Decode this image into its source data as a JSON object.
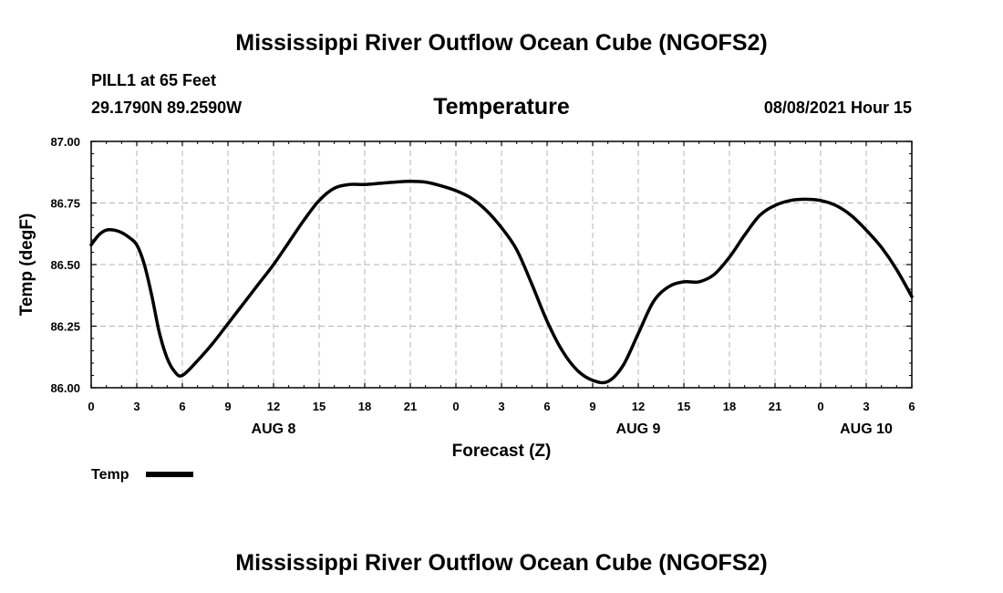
{
  "header": {
    "title_top": "Mississippi River Outflow Ocean Cube (NGOFS2)",
    "station_line": "PILL1 at 65 Feet",
    "coords_line": "29.1790N  89.2590W",
    "variable": "Temperature",
    "datetime": "08/08/2021 Hour 15"
  },
  "footer": {
    "title_bottom": "Mississippi River Outflow Ocean Cube (NGOFS2)"
  },
  "colors": {
    "line": "#000000",
    "grid": "#b4b4b4",
    "background": "#ffffff"
  },
  "chart_data": {
    "type": "line",
    "title": "Temperature",
    "xlabel": "Forecast (Z)",
    "ylabel": "Temp (degF)",
    "xlim": [
      0,
      54
    ],
    "ylim": [
      86.0,
      87.0
    ],
    "grid": true,
    "x_ticks": [
      0,
      3,
      6,
      9,
      12,
      15,
      18,
      21,
      24,
      27,
      30,
      33,
      36,
      39,
      42,
      45,
      48,
      51,
      54
    ],
    "x_tick_labels": [
      "0",
      "3",
      "6",
      "9",
      "12",
      "15",
      "18",
      "21",
      "0",
      "3",
      "6",
      "9",
      "12",
      "15",
      "18",
      "21",
      "0",
      "3",
      "6"
    ],
    "y_ticks": [
      86.0,
      86.25,
      86.5,
      86.75,
      87.0
    ],
    "y_tick_labels": [
      "86.00",
      "86.25",
      "86.50",
      "86.75",
      "87.00"
    ],
    "day_labels": [
      {
        "x": 12,
        "text": "AUG 8"
      },
      {
        "x": 36,
        "text": "AUG 9"
      },
      {
        "x": 51,
        "text": "AUG 10"
      }
    ],
    "legend": {
      "placement": "bottom-left",
      "entries": [
        "Temp"
      ]
    },
    "series": [
      {
        "name": "Temp",
        "x": [
          0,
          0.5,
          1,
          1.5,
          2,
          2.5,
          3,
          3.5,
          4,
          4.5,
          5,
          5.5,
          6,
          7,
          8,
          9,
          10,
          11,
          12,
          13,
          14,
          15,
          16,
          17,
          18,
          19,
          20,
          21,
          22,
          23,
          24,
          25,
          26,
          27,
          28,
          29,
          30,
          31,
          32,
          33,
          34,
          35,
          36,
          37,
          38,
          39,
          40,
          41,
          42,
          43,
          44,
          45,
          46,
          47,
          48,
          49,
          50,
          51,
          52,
          53,
          54
        ],
        "values": [
          86.58,
          86.62,
          86.64,
          86.64,
          86.63,
          86.61,
          86.58,
          86.5,
          86.37,
          86.22,
          86.12,
          86.065,
          86.05,
          86.11,
          86.18,
          86.26,
          86.34,
          86.42,
          86.5,
          86.59,
          86.68,
          86.76,
          86.81,
          86.825,
          86.825,
          86.83,
          86.835,
          86.838,
          86.835,
          86.82,
          86.8,
          86.77,
          86.72,
          86.65,
          86.56,
          86.42,
          86.27,
          86.15,
          86.07,
          86.03,
          86.025,
          86.09,
          86.22,
          86.35,
          86.41,
          86.43,
          86.43,
          86.46,
          86.53,
          86.62,
          86.7,
          86.74,
          86.76,
          86.765,
          86.76,
          86.74,
          86.7,
          86.64,
          86.57,
          86.48,
          86.37
        ]
      }
    ]
  }
}
